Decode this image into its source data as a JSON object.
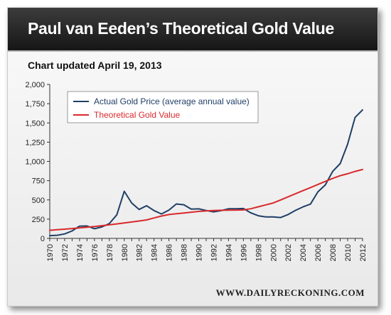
{
  "header": {
    "title": "Paul van Eeden’s Theoretical Gold Value",
    "subtitle": "Chart updated April 19, 2013"
  },
  "footer": {
    "source": "WWW.DAILYRECKONING.COM"
  },
  "colors": {
    "actual": "#1f3f66",
    "theoretical": "#d9292c"
  },
  "chart_data": {
    "type": "line",
    "title": "Paul van Eeden’s Theoretical Gold Value",
    "subtitle": "Chart updated April 19, 2013",
    "xlabel": "",
    "ylabel": "",
    "ylim": [
      0,
      2000
    ],
    "grid": false,
    "legend_position": "top-left",
    "x": [
      1970,
      1971,
      1972,
      1973,
      1974,
      1975,
      1976,
      1977,
      1978,
      1979,
      1980,
      1981,
      1982,
      1983,
      1984,
      1985,
      1986,
      1987,
      1988,
      1989,
      1990,
      1991,
      1992,
      1993,
      1994,
      1995,
      1996,
      1997,
      1998,
      1999,
      2000,
      2001,
      2002,
      2003,
      2004,
      2005,
      2006,
      2007,
      2008,
      2009,
      2010,
      2011,
      2012
    ],
    "x_tick_labels": [
      "1970",
      "1972",
      "1974",
      "1976",
      "1978",
      "1980",
      "1982",
      "1984",
      "1986",
      "1988",
      "1990",
      "1992",
      "1994",
      "1996",
      "1998",
      "2000",
      "2002",
      "2004",
      "2006",
      "2008",
      "2010",
      "2012"
    ],
    "y_tick_labels": [
      "0",
      "250",
      "500",
      "750",
      "1,000",
      "1,250",
      "1,500",
      "1,750",
      "2,000"
    ],
    "y_ticks": [
      0,
      250,
      500,
      750,
      1000,
      1250,
      1500,
      1750,
      2000
    ],
    "series": [
      {
        "name": "Actual Gold Price (average annual value)",
        "color": "#1f3f66",
        "values": [
          36,
          41,
          58,
          97,
          159,
          161,
          125,
          148,
          193,
          306,
          612,
          460,
          376,
          424,
          361,
          317,
          368,
          447,
          437,
          381,
          383,
          362,
          344,
          360,
          384,
          384,
          388,
          331,
          294,
          279,
          279,
          271,
          310,
          364,
          409,
          445,
          604,
          695,
          872,
          972,
          1225,
          1572,
          1669
        ]
      },
      {
        "name": "Theoretical Gold Value",
        "color": "#d9292c",
        "values": [
          105,
          112,
          120,
          128,
          136,
          145,
          155,
          165,
          176,
          188,
          200,
          213,
          226,
          240,
          265,
          290,
          310,
          320,
          330,
          340,
          350,
          358,
          362,
          365,
          367,
          368,
          370,
          385,
          410,
          435,
          460,
          500,
          540,
          580,
          620,
          660,
          700,
          740,
          780,
          815,
          840,
          870,
          895
        ]
      }
    ]
  }
}
